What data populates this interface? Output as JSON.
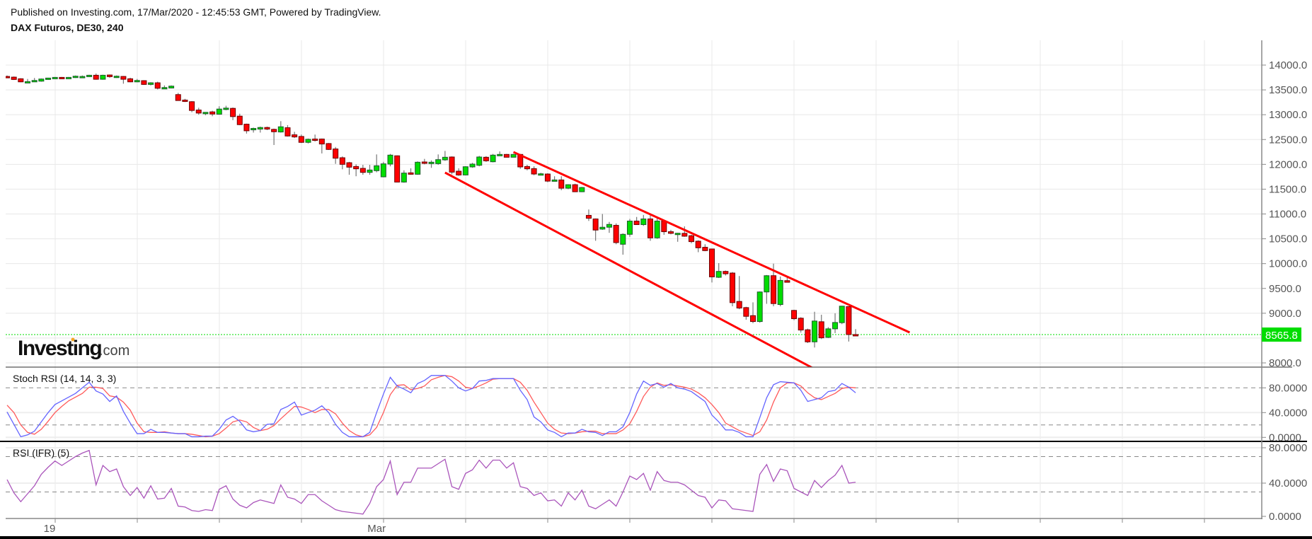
{
  "header": {
    "published": "Published on Investing.com, 17/Mar/2020 - 12:45:53 GMT, Powered by TradingView.",
    "title": "DAX Futuros, DE30, 240"
  },
  "logo": {
    "text": "Investing",
    "suffix": ".com"
  },
  "colors": {
    "up": "#00dd00",
    "down": "#ff0000",
    "up_border": "#1f5a2e",
    "down_border": "#6b0000",
    "wick": "#777777",
    "trendline": "#ff0000",
    "last_price": "#00dd00",
    "stoch_k": "#6464ff",
    "stoch_d": "#ff5a5a",
    "rsi": "#aa55bb"
  },
  "chart_data": [
    {
      "type": "candlestick",
      "x_tick_labels": [
        {
          "label": "19",
          "bar": 7.2
        },
        {
          "label": "Mar",
          "bar": 55.0
        }
      ],
      "y_ticks": [
        "14000.0",
        "13500.0",
        "13000.0",
        "12500.0",
        "12000.0",
        "11500.0",
        "11000.0",
        "10500.0",
        "10000.0",
        "9500.0",
        "9000.0",
        "8000.0"
      ],
      "ylim": [
        7910,
        14000
      ],
      "grid": true,
      "last_price": "8565.8",
      "ohlc_order": [
        "open",
        "high",
        "low",
        "close"
      ],
      "ohlc": [
        [
          13771,
          13790,
          13740,
          13748
        ],
        [
          13757,
          13770,
          13700,
          13710
        ],
        [
          13724,
          13735,
          13655,
          13662
        ],
        [
          13660,
          13720,
          13650,
          13667
        ],
        [
          13676,
          13740,
          13670,
          13690
        ],
        [
          13676,
          13730,
          13665,
          13719
        ],
        [
          13714,
          13745,
          13705,
          13738
        ],
        [
          13733,
          13760,
          13725,
          13752
        ],
        [
          13752,
          13760,
          13725,
          13733
        ],
        [
          13733,
          13760,
          13725,
          13752
        ],
        [
          13748,
          13790,
          13740,
          13776
        ],
        [
          13762,
          13790,
          13755,
          13771
        ],
        [
          13767,
          13805,
          13760,
          13795
        ],
        [
          13795,
          13830,
          13705,
          13714
        ],
        [
          13714,
          13805,
          13705,
          13795
        ],
        [
          13800,
          13810,
          13745,
          13767
        ],
        [
          13748,
          13790,
          13740,
          13776
        ],
        [
          13771,
          13780,
          13625,
          13714
        ],
        [
          13724,
          13745,
          13655,
          13662
        ],
        [
          13662,
          13720,
          13655,
          13690
        ],
        [
          13686,
          13695,
          13600,
          13610
        ],
        [
          13610,
          13655,
          13590,
          13643
        ],
        [
          13643,
          13665,
          13510,
          13533
        ],
        [
          13538,
          13590,
          13530,
          13548
        ],
        [
          13538,
          13590,
          13530,
          13576
        ],
        [
          13405,
          13440,
          13280,
          13286
        ],
        [
          13295,
          13320,
          13255,
          13267
        ],
        [
          13262,
          13275,
          13050,
          13086
        ],
        [
          13095,
          13140,
          13000,
          13033
        ],
        [
          13040,
          13050,
          12990,
          13048
        ],
        [
          13057,
          13080,
          12970,
          13014
        ],
        [
          13010,
          13170,
          13000,
          13114
        ],
        [
          13105,
          13180,
          13090,
          13133
        ],
        [
          13128,
          13145,
          12890,
          12962
        ],
        [
          12971,
          13020,
          12790,
          12800
        ],
        [
          12810,
          12820,
          12620,
          12676
        ],
        [
          12695,
          12740,
          12640,
          12724
        ],
        [
          12710,
          12760,
          12640,
          12743
        ],
        [
          12743,
          12760,
          12690,
          12710
        ],
        [
          12705,
          12720,
          12390,
          12657
        ],
        [
          12652,
          12870,
          12640,
          12757
        ],
        [
          12738,
          12790,
          12560,
          12571
        ],
        [
          12595,
          12655,
          12530,
          12552
        ],
        [
          12562,
          12600,
          12430,
          12443
        ],
        [
          12443,
          12520,
          12420,
          12505
        ],
        [
          12510,
          12600,
          12460,
          12495
        ],
        [
          12510,
          12520,
          12220,
          12410
        ],
        [
          12419,
          12430,
          12290,
          12300
        ],
        [
          12310,
          12350,
          12010,
          12124
        ],
        [
          12133,
          12160,
          11900,
          12000
        ],
        [
          12033,
          12050,
          11790,
          11943
        ],
        [
          11957,
          12000,
          11760,
          11910
        ],
        [
          11919,
          11990,
          11790,
          11838
        ],
        [
          11838,
          11990,
          11790,
          11886
        ],
        [
          11872,
          12200,
          11840,
          11972
        ],
        [
          11748,
          12050,
          11740,
          12010
        ],
        [
          12005,
          12210,
          11960,
          12186
        ],
        [
          12172,
          12180,
          11640,
          11643
        ],
        [
          11643,
          11880,
          11630,
          11824
        ],
        [
          11829,
          11920,
          11790,
          11800
        ],
        [
          11800,
          12060,
          11790,
          12043
        ],
        [
          12048,
          12110,
          12000,
          12029
        ],
        [
          12033,
          12080,
          11930,
          12043
        ],
        [
          12014,
          12200,
          11990,
          12095
        ],
        [
          12090,
          12270,
          12070,
          12143
        ],
        [
          12148,
          12160,
          11800,
          11843
        ],
        [
          11862,
          11920,
          11770,
          11786
        ],
        [
          11786,
          11962,
          11780,
          11952
        ],
        [
          11948,
          12030,
          11930,
          12005
        ],
        [
          11981,
          12170,
          11960,
          12148
        ],
        [
          12143,
          12165,
          12050,
          12071
        ],
        [
          12052,
          12210,
          12040,
          12186
        ],
        [
          12186,
          12260,
          12180,
          12200
        ],
        [
          12200,
          12210,
          12140,
          12143
        ],
        [
          12143,
          12210,
          12140,
          12200
        ],
        [
          12200,
          12210,
          11910,
          11948
        ],
        [
          11957,
          11990,
          11880,
          11910
        ],
        [
          11914,
          11960,
          11780,
          11805
        ],
        [
          11810,
          11830,
          11790,
          11810
        ],
        [
          11805,
          11820,
          11640,
          11662
        ],
        [
          11686,
          11760,
          11670,
          11686
        ],
        [
          11686,
          11760,
          11480,
          11519
        ],
        [
          11519,
          11600,
          11500,
          11590
        ],
        [
          11590,
          11610,
          11440,
          11448
        ],
        [
          11448,
          11545,
          11440,
          11533
        ],
        [
          10972,
          11090,
          10860,
          10914
        ],
        [
          10900,
          10910,
          10460,
          10676
        ],
        [
          10695,
          11000,
          10680,
          10733
        ],
        [
          10733,
          10840,
          10620,
          10790
        ],
        [
          10771,
          10810,
          10390,
          10424
        ],
        [
          10390,
          10610,
          10180,
          10590
        ],
        [
          10590,
          10900,
          10540,
          10857
        ],
        [
          10857,
          10940,
          10780,
          10786
        ],
        [
          10786,
          10980,
          10760,
          10900
        ],
        [
          10900,
          10970,
          10460,
          10519
        ],
        [
          10519,
          10930,
          10500,
          10857
        ],
        [
          10857,
          10880,
          10580,
          10643
        ],
        [
          10643,
          10680,
          10590,
          10610
        ],
        [
          10610,
          10620,
          10440,
          10612
        ],
        [
          10610,
          10750,
          10540,
          10552
        ],
        [
          10562,
          10580,
          10410,
          10443
        ],
        [
          10452,
          10470,
          10230,
          10319
        ],
        [
          10329,
          10390,
          10250,
          10262
        ],
        [
          10295,
          10300,
          9620,
          9733
        ],
        [
          9724,
          10010,
          9710,
          9843
        ],
        [
          9843,
          9860,
          9760,
          9795
        ],
        [
          9810,
          9830,
          9140,
          9214
        ],
        [
          9238,
          9750,
          9080,
          9105
        ],
        [
          9114,
          9130,
          8870,
          8938
        ],
        [
          8952,
          9220,
          8800,
          8833
        ],
        [
          8833,
          9440,
          8810,
          9429
        ],
        [
          9429,
          9770,
          9190,
          9757
        ],
        [
          9757,
          10000,
          9140,
          9195
        ],
        [
          9176,
          9740,
          9140,
          9662
        ],
        [
          9657,
          9720,
          9620,
          9624
        ],
        [
          9057,
          9070,
          8860,
          8890
        ],
        [
          8900,
          8920,
          8610,
          8662
        ],
        [
          8667,
          8690,
          8400,
          8424
        ],
        [
          8424,
          9030,
          8310,
          8843
        ],
        [
          8829,
          8970,
          8480,
          8505
        ],
        [
          8514,
          8720,
          8500,
          8686
        ],
        [
          8686,
          9000,
          8600,
          8814
        ],
        [
          8810,
          9150,
          8780,
          9143
        ],
        [
          9133,
          9140,
          8430,
          8571
        ],
        [
          8571,
          8680,
          8560,
          8566
        ]
      ],
      "trendlines": [
        {
          "from": {
            "bar": 75.0,
            "price": 12248
          },
          "to": {
            "bar": 132.9,
            "price": 8613
          }
        },
        {
          "from": {
            "bar": 65.0,
            "price": 11834
          },
          "to": {
            "bar": 124.7,
            "price": 7459
          }
        }
      ]
    },
    {
      "type": "line",
      "title": "Stoch RSI (14, 14, 3, 3)",
      "y_ticks": [
        "80.0000",
        "40.0000",
        "0.0000"
      ],
      "ylim": [
        0,
        100
      ],
      "levels": [
        80,
        20
      ],
      "series": [
        {
          "key": "k",
          "values": [
            41,
            21,
            1,
            4,
            10,
            25,
            40,
            53,
            59,
            65,
            71,
            80,
            89,
            75,
            70,
            58,
            67,
            42,
            23,
            6,
            6,
            13,
            8,
            8,
            7,
            6,
            6,
            1,
            1,
            2,
            2,
            13,
            28,
            34,
            26,
            12,
            9,
            11,
            21,
            22,
            45,
            50,
            57,
            36,
            40,
            44,
            51,
            40,
            21,
            8,
            1,
            1,
            1,
            8,
            40,
            70,
            97,
            83,
            78,
            72,
            87,
            92,
            100,
            100,
            100,
            91,
            80,
            75,
            79,
            91,
            92,
            95,
            95,
            95,
            95,
            76,
            61,
            33,
            25,
            12,
            8,
            1,
            7,
            7,
            13,
            9,
            8,
            3,
            9,
            9,
            17,
            40,
            70,
            91,
            84,
            87,
            81,
            87,
            80,
            78,
            74,
            66,
            58,
            36,
            25,
            12,
            12,
            8,
            1,
            1,
            32,
            64,
            85,
            90,
            89,
            88,
            76,
            58,
            61,
            64,
            74,
            76,
            87,
            81,
            72
          ]
        },
        {
          "key": "d",
          "values": [
            52,
            40,
            20,
            8,
            5,
            13,
            26,
            40,
            50,
            59,
            65,
            71,
            81,
            81,
            79,
            67,
            65,
            57,
            44,
            23,
            9,
            8,
            8,
            9,
            7,
            6,
            6,
            5,
            3,
            1,
            2,
            6,
            15,
            25,
            28,
            25,
            16,
            11,
            13,
            19,
            30,
            40,
            50,
            49,
            45,
            40,
            45,
            45,
            38,
            23,
            11,
            4,
            1,
            4,
            16,
            40,
            69,
            84,
            85,
            77,
            79,
            83,
            93,
            97,
            100,
            98,
            91,
            81,
            79,
            83,
            88,
            94,
            95,
            95,
            95,
            89,
            76,
            57,
            40,
            23,
            13,
            7,
            6,
            7,
            9,
            10,
            10,
            6,
            6,
            6,
            12,
            22,
            42,
            66,
            81,
            88,
            84,
            85,
            83,
            81,
            78,
            72,
            64,
            53,
            40,
            23,
            17,
            11,
            7,
            3,
            9,
            28,
            57,
            80,
            88,
            88,
            83,
            72,
            64,
            61,
            66,
            71,
            79,
            81,
            80
          ]
        }
      ]
    },
    {
      "type": "line",
      "title": "RSI (IFR) (5)",
      "y_ticks": [
        "80.0000",
        "40.0000",
        "0.0000"
      ],
      "ylim": [
        0,
        100
      ],
      "levels": [
        70,
        30
      ],
      "series": [
        {
          "key": "rsi",
          "values": [
            44,
            29,
            19,
            28,
            37,
            50,
            58,
            65,
            60,
            65,
            70,
            74,
            77,
            38,
            60,
            53,
            56,
            36,
            26,
            35,
            23,
            37,
            22,
            23,
            34,
            14,
            13,
            9,
            8,
            10,
            9,
            33,
            37,
            22,
            15,
            12,
            18,
            21,
            19,
            17,
            38,
            24,
            22,
            17,
            27,
            27,
            20,
            15,
            10,
            8,
            7,
            6,
            5,
            17,
            36,
            44,
            65,
            27,
            41,
            41,
            57,
            57,
            57,
            62,
            67,
            36,
            33,
            51,
            55,
            66,
            57,
            66,
            66,
            57,
            63,
            36,
            34,
            26,
            29,
            20,
            21,
            14,
            29,
            21,
            32,
            14,
            11,
            16,
            21,
            14,
            30,
            48,
            44,
            51,
            32,
            53,
            43,
            41,
            41,
            38,
            32,
            26,
            24,
            12,
            21,
            20,
            11,
            10,
            9,
            8,
            50,
            61,
            42,
            56,
            54,
            34,
            30,
            26,
            43,
            35,
            43,
            49,
            60,
            40,
            41
          ]
        }
      ]
    }
  ]
}
